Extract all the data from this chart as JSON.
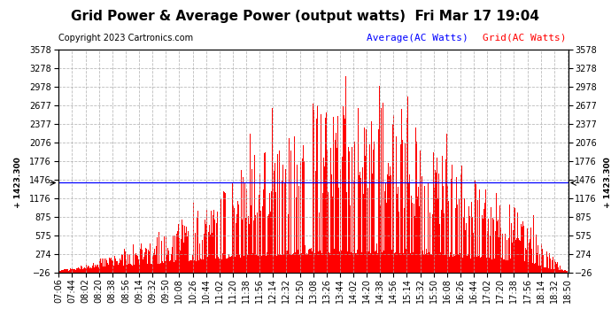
{
  "title": "Grid Power & Average Power (output watts)  Fri Mar 17 19:04",
  "copyright": "Copyright 2023 Cartronics.com",
  "legend_avg": "Average(AC Watts)",
  "legend_grid": "Grid(AC Watts)",
  "avg_value": 1423.3,
  "avg_label": "1423.300",
  "ymin": -25.9,
  "ymax": 3578.2,
  "yticks": [
    3578.2,
    3277.9,
    2977.5,
    2677.2,
    2376.8,
    2076.5,
    1776.2,
    1475.8,
    1175.5,
    875.1,
    574.8,
    274.4,
    -25.9
  ],
  "xtick_labels": [
    "07:06",
    "07:44",
    "08:02",
    "08:20",
    "08:38",
    "08:56",
    "09:14",
    "09:32",
    "09:50",
    "10:08",
    "10:26",
    "10:44",
    "11:02",
    "11:20",
    "11:38",
    "11:56",
    "12:14",
    "12:32",
    "12:50",
    "13:08",
    "13:26",
    "13:44",
    "14:02",
    "14:20",
    "14:38",
    "14:56",
    "15:14",
    "15:32",
    "15:50",
    "16:08",
    "16:26",
    "16:44",
    "17:02",
    "17:20",
    "17:38",
    "17:56",
    "18:14",
    "18:32",
    "18:50"
  ],
  "avg_line_color": "#0000ff",
  "grid_bar_color": "#ff0000",
  "background_color": "#ffffff",
  "plot_bg_color": "#ffffff",
  "grid_line_color": "#aaaaaa",
  "title_fontsize": 11,
  "copyright_fontsize": 7,
  "tick_fontsize": 7,
  "legend_avg_color": "#0000ff",
  "legend_grid_color": "#ff0000",
  "legend_fontsize": 8
}
